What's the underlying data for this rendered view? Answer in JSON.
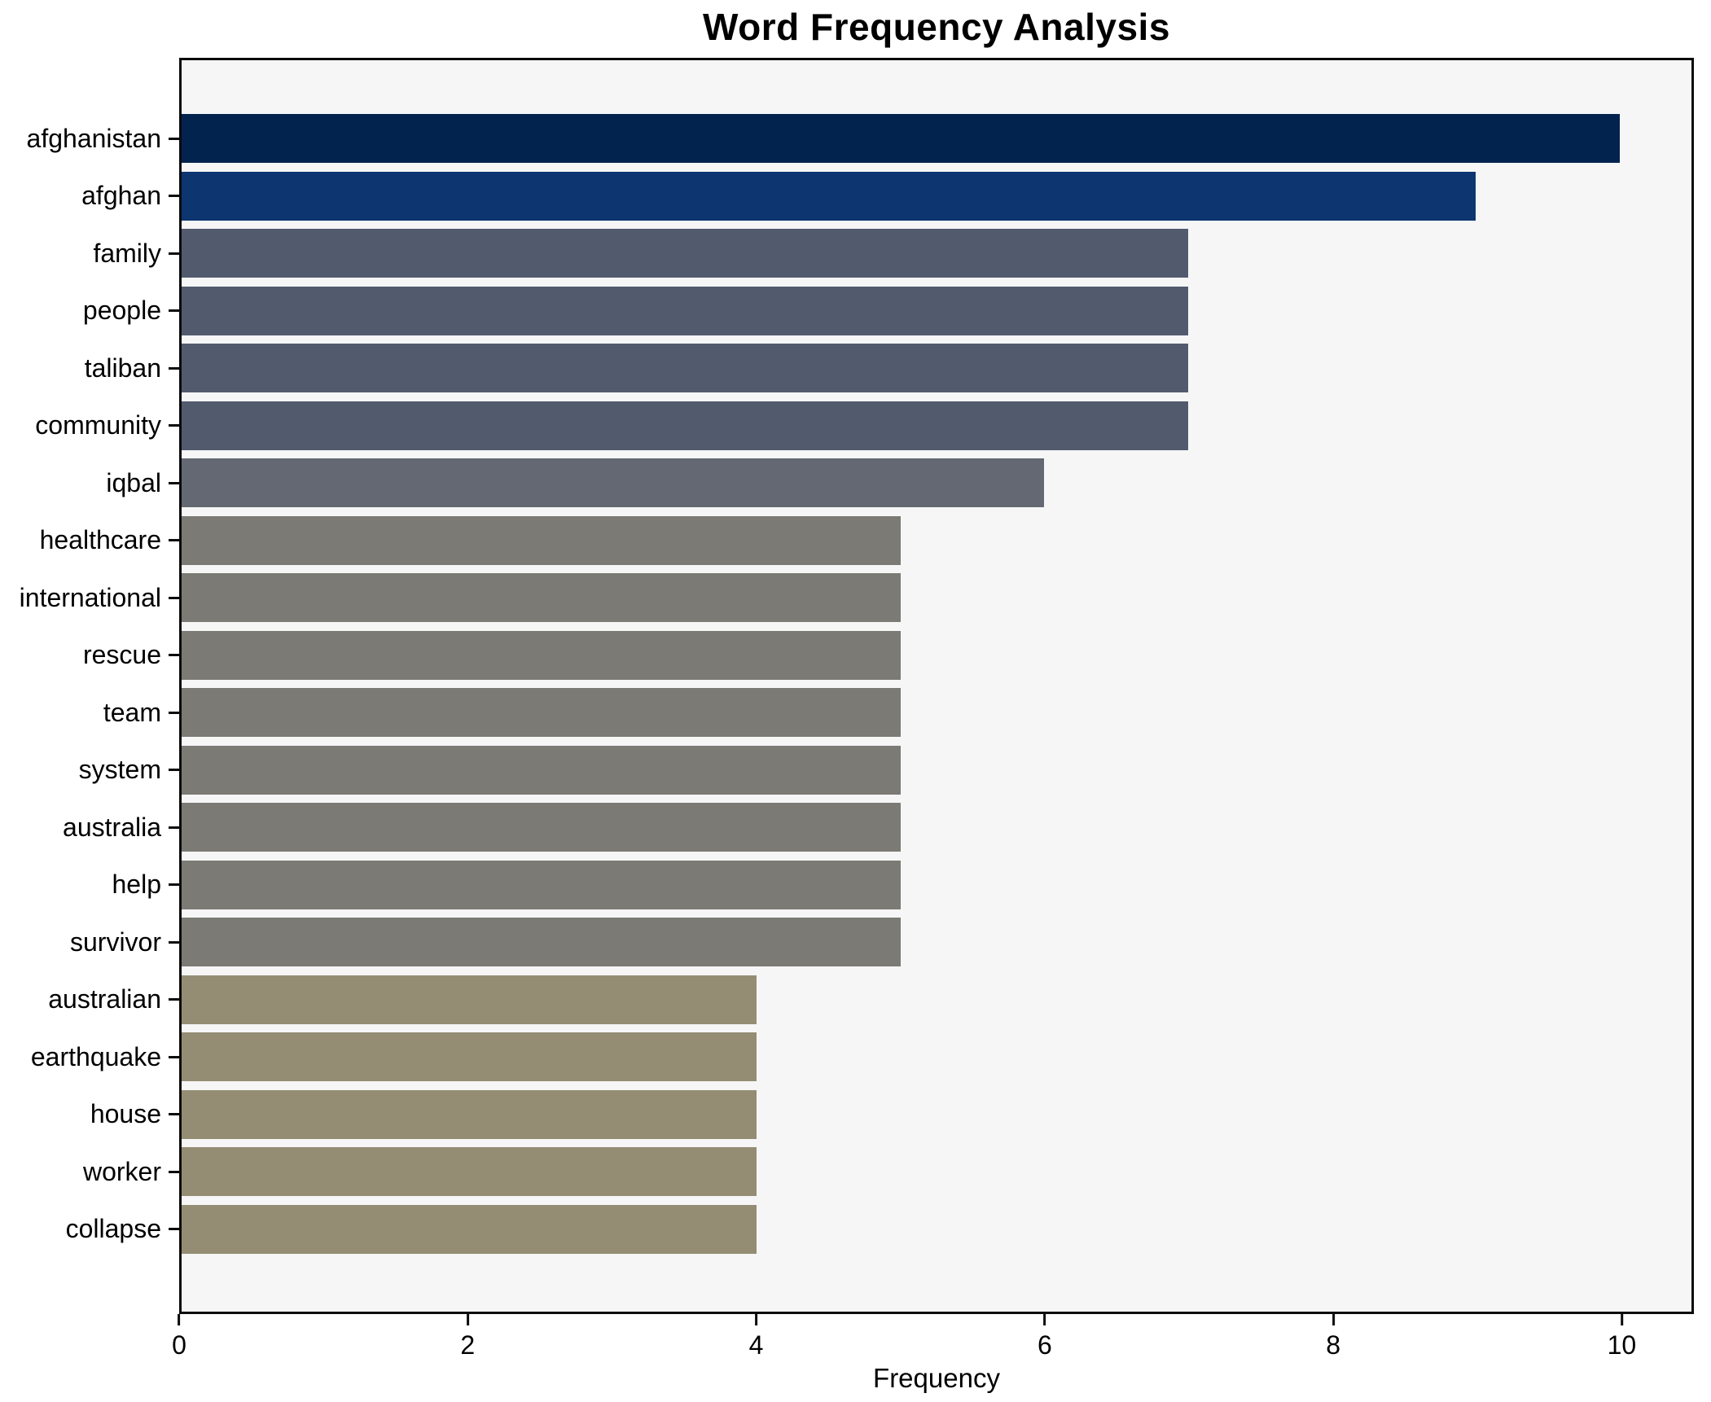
{
  "title": "Word Frequency Analysis",
  "chart_data": {
    "type": "bar",
    "orientation": "horizontal",
    "title": "Word Frequency Analysis",
    "xlabel": "Frequency",
    "ylabel": "",
    "xlim": [
      0,
      10.5
    ],
    "xticks": [
      0,
      2,
      4,
      6,
      8,
      10
    ],
    "grid": false,
    "legend_position": "none",
    "plot_background": "#f6f6f7",
    "figure_background": "#ffffff",
    "spine_color": "#0b0b0b",
    "categories": [
      "afghanistan",
      "afghan",
      "family",
      "people",
      "taliban",
      "community",
      "iqbal",
      "healthcare",
      "international",
      "rescue",
      "team",
      "system",
      "australia",
      "help",
      "survivor",
      "australian",
      "earthquake",
      "house",
      "worker",
      "collapse"
    ],
    "values": [
      10,
      9,
      7,
      7,
      7,
      7,
      6,
      5,
      5,
      5,
      5,
      5,
      5,
      5,
      5,
      4,
      4,
      4,
      4,
      4
    ],
    "bar_colors": [
      "#02234e",
      "#0d3570",
      "#525b6e",
      "#525b6e",
      "#525b6e",
      "#525b6e",
      "#646872",
      "#7b7a74",
      "#7b7a74",
      "#7b7a74",
      "#7b7a74",
      "#7b7a74",
      "#7b7a74",
      "#7b7a74",
      "#7b7a74",
      "#948d73",
      "#948d73",
      "#948d73",
      "#948d73",
      "#948d73"
    ]
  }
}
